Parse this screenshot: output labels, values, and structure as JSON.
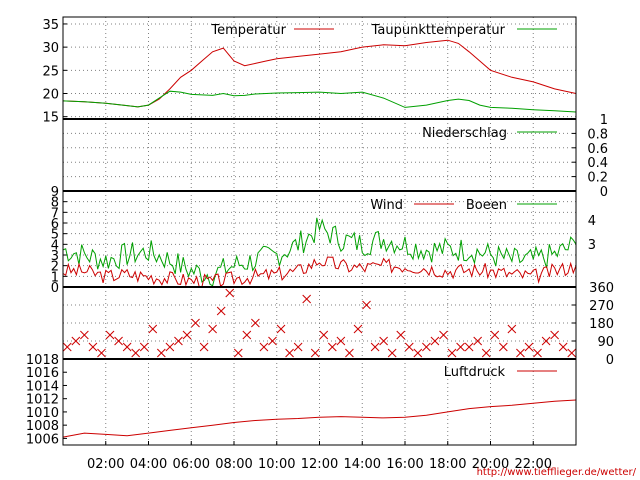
{
  "source_url": "http://www.tiefflieger.de/wetter/",
  "colors": {
    "temperature": "#cc0000",
    "dewpoint": "#00a000",
    "rain": "#00a000",
    "wind": "#cc0000",
    "gust": "#00a000",
    "direction": "#cc0000",
    "pressure": "#cc0000",
    "grid": "#808080"
  },
  "chart_data": [
    {
      "type": "line",
      "panel": "temperature",
      "ylim": [
        14.5,
        36.5
      ],
      "y_ticks": [
        "15",
        "20",
        "25",
        "30",
        "35"
      ],
      "x": [
        0,
        1,
        2,
        3,
        3.5,
        4,
        4.5,
        5,
        5.5,
        6,
        6.5,
        7,
        7.5,
        8,
        8.5,
        9,
        9.5,
        10,
        11,
        12,
        13,
        14,
        15,
        16,
        17,
        18,
        18.5,
        19,
        19.5,
        20,
        21,
        22,
        23,
        24
      ],
      "series": [
        {
          "name": "Temperatur",
          "values": [
            18.4,
            18.2,
            17.9,
            17.4,
            17.1,
            17.5,
            18.8,
            21,
            23.5,
            25,
            27,
            29,
            29.8,
            27,
            26,
            26.5,
            27,
            27.5,
            28,
            28.5,
            29,
            30,
            30.5,
            30.3,
            31,
            31.5,
            30.8,
            29,
            27,
            25,
            23.5,
            22.5,
            21,
            20
          ]
        },
        {
          "name": "Taupunkttemperatur",
          "values": [
            18.4,
            18.2,
            17.9,
            17.4,
            17.1,
            17.5,
            19,
            20.5,
            20.3,
            19.8,
            19.7,
            19.6,
            20,
            19.5,
            19.6,
            19.9,
            20,
            20.1,
            20.2,
            20.3,
            20,
            20.3,
            19,
            17,
            17.5,
            18.5,
            18.8,
            18.5,
            17.5,
            17,
            16.8,
            16.5,
            16.3,
            16
          ]
        }
      ]
    },
    {
      "type": "line",
      "panel": "rain",
      "ylim": [
        0,
        1
      ],
      "y_ticks": [
        "0",
        "0.2",
        "0.4",
        "0.6",
        "0.8",
        "1"
      ],
      "series": [
        {
          "name": "Niederschlag",
          "x": [
            0,
            24
          ],
          "values": [
            0,
            0
          ]
        }
      ]
    },
    {
      "type": "line",
      "panel": "wind",
      "ylim": [
        0,
        9
      ],
      "y_ticks": [
        "0",
        "1",
        "2",
        "3",
        "4",
        "5",
        "6",
        "7",
        "8",
        "9"
      ],
      "y2_ticks": [
        "3",
        "4"
      ],
      "x": [
        0,
        1,
        2,
        3,
        4,
        5,
        6,
        7,
        8,
        9,
        10,
        11,
        12,
        13,
        14,
        15,
        16,
        17,
        18,
        19,
        20,
        21,
        22,
        23,
        24
      ],
      "series": [
        {
          "name": "Wind",
          "values": [
            1.5,
            1.5,
            1,
            1.2,
            1,
            0.8,
            0.6,
            0.5,
            0.8,
            1,
            1.2,
            1.5,
            2.5,
            2,
            1.8,
            2,
            2,
            1.8,
            1.5,
            1.6,
            1.5,
            1.2,
            1,
            1.5,
            2
          ]
        },
        {
          "name": "Boeen",
          "values": [
            3.5,
            3,
            2.5,
            3,
            3.3,
            2.5,
            1.5,
            1.2,
            2,
            2.5,
            3,
            4,
            5.5,
            4.5,
            4,
            4.5,
            4,
            3.5,
            3.5,
            3.5,
            3,
            2.5,
            2.5,
            3,
            4
          ]
        }
      ]
    },
    {
      "type": "scatter",
      "panel": "direction",
      "ylim": [
        0,
        360
      ],
      "y2_ticks": [
        "0",
        "90",
        "180",
        "270",
        "360"
      ],
      "x": [
        0.2,
        0.6,
        1,
        1.4,
        1.8,
        2.2,
        2.6,
        3,
        3.4,
        3.8,
        4.2,
        4.6,
        5,
        5.4,
        5.8,
        6.2,
        6.6,
        7,
        7.4,
        7.8,
        8.2,
        8.6,
        9,
        9.4,
        9.8,
        10.2,
        10.6,
        11,
        11.4,
        11.8,
        12.2,
        12.6,
        13,
        13.4,
        13.8,
        14.2,
        14.6,
        15,
        15.4,
        15.8,
        16.2,
        16.6,
        17,
        17.4,
        17.8,
        18.2,
        18.6,
        19,
        19.4,
        19.8,
        20.2,
        20.6,
        21,
        21.4,
        21.8,
        22.2,
        22.6,
        23,
        23.4,
        23.8
      ],
      "values": [
        60,
        90,
        120,
        60,
        30,
        120,
        90,
        60,
        30,
        60,
        150,
        30,
        60,
        90,
        120,
        180,
        60,
        150,
        240,
        330,
        30,
        120,
        180,
        60,
        90,
        150,
        30,
        60,
        300,
        30,
        120,
        60,
        90,
        30,
        150,
        270,
        60,
        90,
        30,
        120,
        60,
        30,
        60,
        90,
        120,
        30,
        60,
        60,
        90,
        30,
        120,
        60,
        150,
        30,
        60,
        30,
        90,
        120,
        60,
        30
      ],
      "series": [
        {
          "name": "",
          "values": [
            60,
            90,
            120,
            60,
            30,
            120,
            90,
            60,
            30,
            60,
            150,
            30,
            60,
            90,
            120,
            180,
            60,
            150,
            240,
            330,
            30,
            120,
            180,
            60,
            90,
            150,
            30,
            60,
            300,
            30,
            120,
            60,
            90,
            30,
            150,
            270,
            60,
            90,
            30,
            120,
            60,
            30,
            60,
            90,
            120,
            30,
            60,
            60,
            90,
            30,
            120,
            60,
            150,
            30,
            60,
            30,
            90,
            120,
            60,
            30
          ]
        }
      ]
    },
    {
      "type": "line",
      "panel": "pressure",
      "ylim": [
        1005,
        1018
      ],
      "y_ticks": [
        "1006",
        "1008",
        "1010",
        "1012",
        "1014",
        "1016",
        "1018"
      ],
      "x": [
        0,
        1,
        2,
        3,
        4,
        5,
        6,
        7,
        8,
        9,
        10,
        11,
        12,
        13,
        14,
        15,
        16,
        17,
        18,
        19,
        20,
        21,
        22,
        23,
        24
      ],
      "x_ticks": [
        "02:00",
        "04:00",
        "06:00",
        "08:00",
        "10:00",
        "12:00",
        "14:00",
        "16:00",
        "18:00",
        "20:00",
        "22:00"
      ],
      "series": [
        {
          "name": "Luftdruck",
          "values": [
            1006.2,
            1006.8,
            1006.6,
            1006.4,
            1006.8,
            1007.2,
            1007.6,
            1008,
            1008.4,
            1008.7,
            1008.9,
            1009,
            1009.2,
            1009.3,
            1009.2,
            1009.1,
            1009.2,
            1009.5,
            1010,
            1010.5,
            1010.8,
            1011,
            1011.3,
            1011.6,
            1011.8
          ]
        }
      ]
    }
  ]
}
